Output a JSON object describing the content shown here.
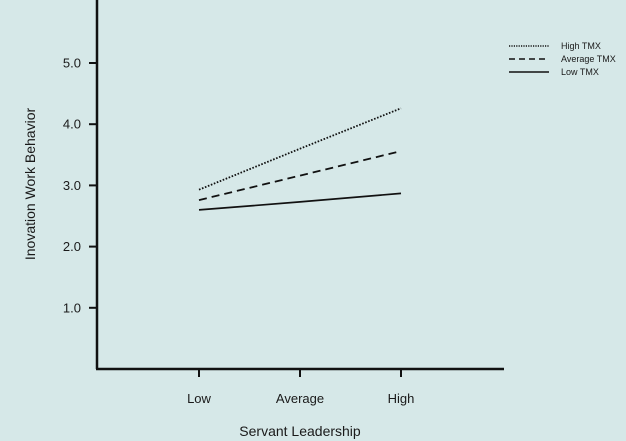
{
  "chart_data": {
    "type": "line",
    "categories": [
      "Low",
      "Average",
      "High"
    ],
    "xlabel": "Servant Leadership",
    "ylabel": "Inovation Work Behavior",
    "ylim": [
      0,
      6
    ],
    "yticks": [
      "1.0",
      "2.0",
      "3.0",
      "4.0",
      "5.0"
    ],
    "legend_position": "top-right",
    "series": [
      {
        "name": "High TMX",
        "values": [
          2.93,
          3.6,
          4.26
        ],
        "style": "dotted"
      },
      {
        "name": "Average TMX",
        "values": [
          2.76,
          3.16,
          3.56
        ],
        "style": "dashed"
      },
      {
        "name": "Low TMX",
        "values": [
          2.6,
          2.73,
          2.87
        ],
        "style": "solid"
      }
    ],
    "grid": false
  }
}
